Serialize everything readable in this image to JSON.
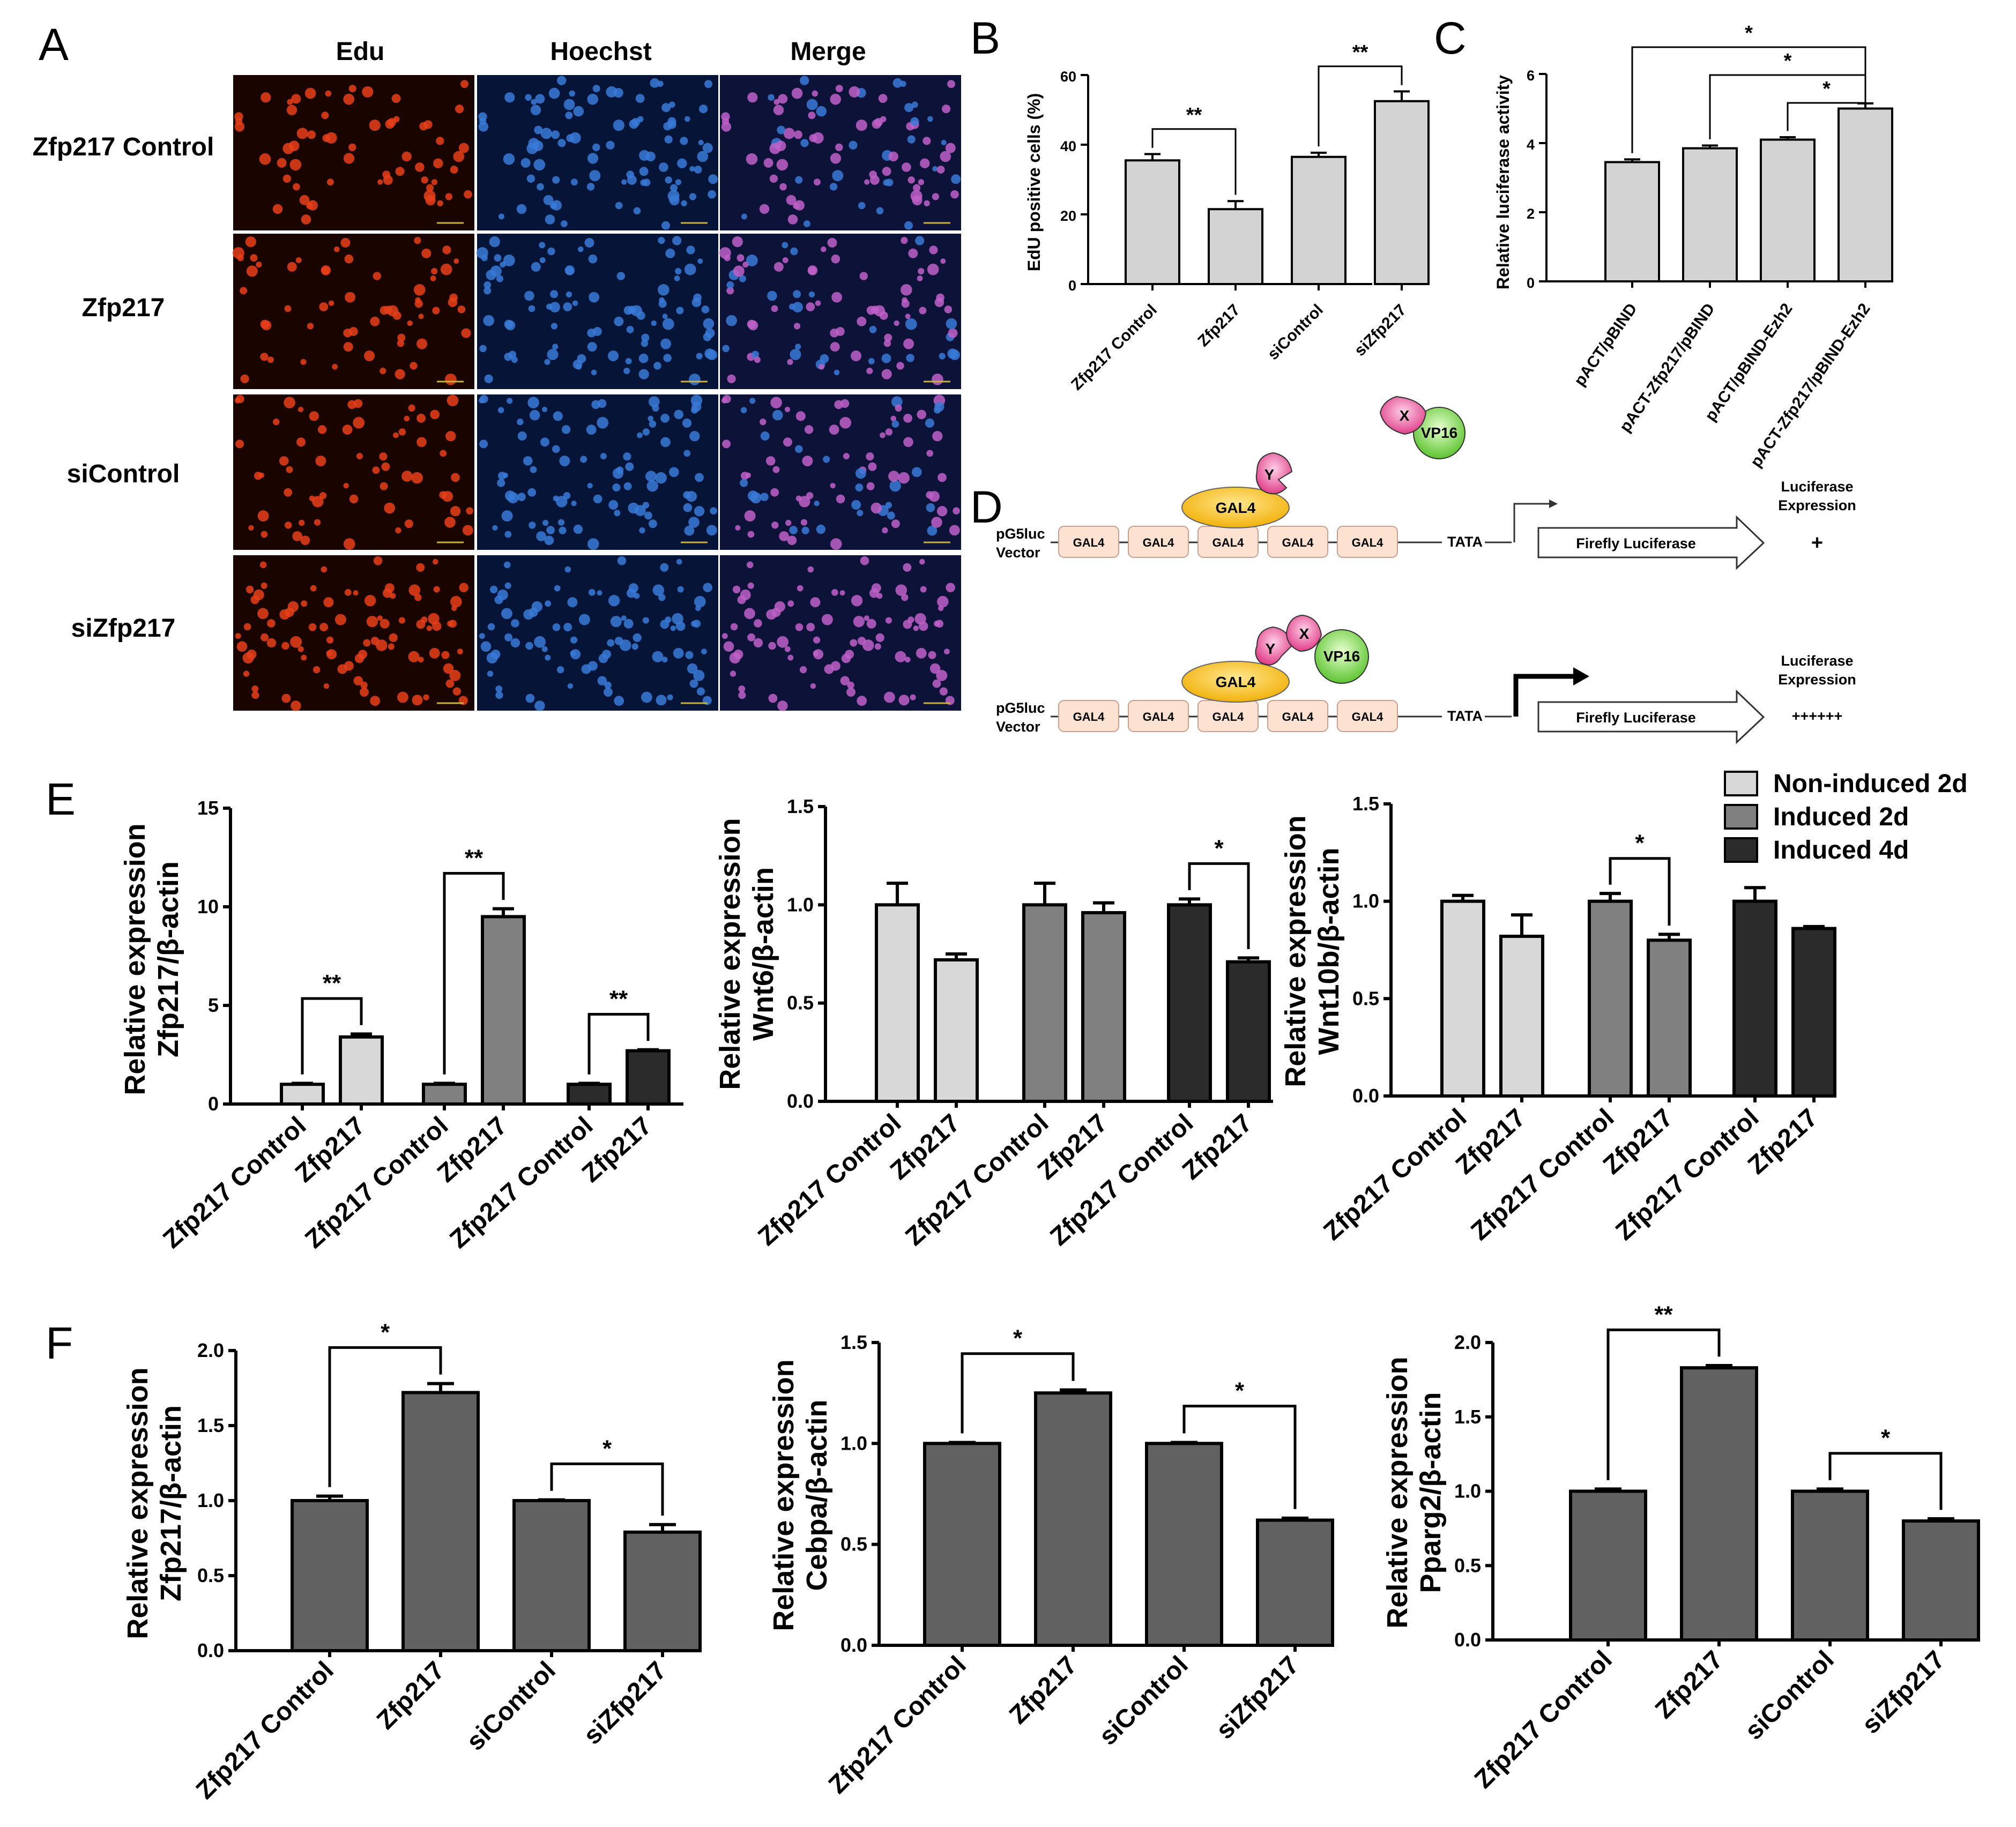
{
  "panel_labels": {
    "A": "A",
    "B": "B",
    "C": "C",
    "D": "D",
    "E": "E",
    "F": "F"
  },
  "panel_a": {
    "columns": [
      "Edu",
      "Hoechst",
      "Merge"
    ],
    "rows": [
      "Zfp217 Control",
      "Zfp217",
      "siControl",
      "siZfp217"
    ],
    "colors": {
      "edu": "#e8401a",
      "hoechst": "#3a7ad8",
      "merge": "#c060c8",
      "edu_bg": "#1a0400",
      "hoechst_bg": "#061438",
      "merge_bg": "#0d1238"
    }
  },
  "panel_d": {
    "vector_label": [
      "pG5luc",
      "Vector"
    ],
    "gal4_box": "GAL4",
    "gal4_protein": "GAL4",
    "tata": "TATA",
    "reporter": "Firefly Luciferase",
    "y_label": "Y",
    "x_label": "X",
    "vp16_label": "VP16",
    "expression_label": [
      "Luciferase",
      "Expression"
    ],
    "expr_top": "+",
    "expr_bottom": "++++++"
  },
  "legend": {
    "entries": [
      "Non-induced 2d",
      "Induced 2d",
      "Induced 4d"
    ],
    "colors": [
      "#d8d8d8",
      "#808080",
      "#2b2b2b"
    ]
  },
  "chart_data": [
    {
      "id": "B",
      "type": "bar",
      "categories": [
        "Zfp217 Control",
        "Zfp217",
        "siControl",
        "siZfp217"
      ],
      "values": [
        35.5,
        21.5,
        36.5,
        52.5
      ],
      "errors": [
        1.8,
        2.3,
        1.2,
        2.8
      ],
      "ylabel": "EdU positive cells (%)",
      "ylim": [
        0,
        60
      ],
      "yticks": [
        "0",
        "20",
        "40",
        "60"
      ],
      "ytick_values": [
        0,
        20,
        40,
        60
      ],
      "bar_colors": [
        "#d3d3d3",
        "#d3d3d3",
        "#d3d3d3",
        "#d3d3d3"
      ],
      "significance": [
        {
          "from": 0,
          "to": 1,
          "label": "**"
        },
        {
          "from": 2,
          "to": 3,
          "label": "**"
        }
      ]
    },
    {
      "id": "C",
      "type": "bar",
      "categories": [
        "pACT/pBIND",
        "pACT-Zfp217/pBIND",
        "pACT/pBIND-Ezh2",
        "pACT-Zfp217/pBIND-Ezh2"
      ],
      "values": [
        3.45,
        3.85,
        4.1,
        5.0
      ],
      "errors": [
        0.08,
        0.08,
        0.07,
        0.15
      ],
      "ylabel": "Relative luciferase activity",
      "ylim": [
        0,
        6
      ],
      "yticks": [
        "0",
        "2",
        "4",
        "6"
      ],
      "ytick_values": [
        0,
        2,
        4,
        6
      ],
      "bar_colors": [
        "#d3d3d3",
        "#d3d3d3",
        "#d3d3d3",
        "#d3d3d3"
      ],
      "significance": [
        {
          "from": 0,
          "to": 3,
          "label": "*"
        },
        {
          "from": 1,
          "to": 3,
          "label": "*"
        },
        {
          "from": 2,
          "to": 3,
          "label": "*"
        }
      ]
    },
    {
      "id": "E1",
      "type": "bar",
      "categories": [
        "Zfp217 Control",
        "Zfp217",
        "Zfp217 Control",
        "Zfp217",
        "Zfp217 Control",
        "Zfp217"
      ],
      "values": [
        1.0,
        3.4,
        1.0,
        9.5,
        1.0,
        2.7
      ],
      "errors": [
        0.05,
        0.15,
        0.05,
        0.4,
        0.05,
        0.05
      ],
      "ylabel": [
        "Relative expression",
        "Zfp217/β-actin"
      ],
      "ylim": [
        0,
        15
      ],
      "yticks": [
        "0",
        "5",
        "10",
        "15"
      ],
      "ytick_values": [
        0,
        5,
        10,
        15
      ],
      "bar_colors": [
        "#d8d8d8",
        "#d8d8d8",
        "#808080",
        "#808080",
        "#2b2b2b",
        "#2b2b2b"
      ],
      "significance": [
        {
          "from": 0,
          "to": 1,
          "label": "**"
        },
        {
          "from": 2,
          "to": 3,
          "label": "**"
        },
        {
          "from": 4,
          "to": 5,
          "label": "**"
        }
      ]
    },
    {
      "id": "E2",
      "type": "bar",
      "categories": [
        "Zfp217 Control",
        "Zfp217",
        "Zfp217 Control",
        "Zfp217",
        "Zfp217 Control",
        "Zfp217"
      ],
      "values": [
        1.0,
        0.72,
        1.0,
        0.96,
        1.0,
        0.71
      ],
      "errors": [
        0.11,
        0.03,
        0.11,
        0.05,
        0.03,
        0.02
      ],
      "ylabel": [
        "Relative expression",
        "Wnt6/β-actin"
      ],
      "ylim": [
        0,
        1.5
      ],
      "yticks": [
        "0.0",
        "0.5",
        "1.0",
        "1.5"
      ],
      "ytick_values": [
        0,
        0.5,
        1.0,
        1.5
      ],
      "bar_colors": [
        "#d8d8d8",
        "#d8d8d8",
        "#808080",
        "#808080",
        "#2b2b2b",
        "#2b2b2b"
      ],
      "significance": [
        {
          "from": 4,
          "to": 5,
          "label": "*"
        }
      ]
    },
    {
      "id": "E3",
      "type": "bar",
      "categories": [
        "Zfp217 Control",
        "Zfp217",
        "Zfp217 Control",
        "Zfp217",
        "Zfp217 Control",
        "Zfp217"
      ],
      "values": [
        1.0,
        0.82,
        1.0,
        0.8,
        1.0,
        0.86
      ],
      "errors": [
        0.03,
        0.11,
        0.04,
        0.03,
        0.07,
        0.01
      ],
      "ylabel": [
        "Relative expression",
        "Wnt10b/β-actin"
      ],
      "ylim": [
        0,
        1.5
      ],
      "yticks": [
        "0.0",
        "0.5",
        "1.0",
        "1.5"
      ],
      "ytick_values": [
        0,
        0.5,
        1.0,
        1.5
      ],
      "bar_colors": [
        "#d8d8d8",
        "#d8d8d8",
        "#808080",
        "#808080",
        "#2b2b2b",
        "#2b2b2b"
      ],
      "significance": [
        {
          "from": 2,
          "to": 3,
          "label": "*"
        }
      ]
    },
    {
      "id": "F1",
      "type": "bar",
      "categories": [
        "Zfp217 Control",
        "Zfp217",
        "siControl",
        "siZfp217"
      ],
      "values": [
        1.0,
        1.72,
        1.0,
        0.79
      ],
      "errors": [
        0.03,
        0.06,
        0.005,
        0.05
      ],
      "ylabel": [
        "Relative expression",
        "Zfp217/β-actin"
      ],
      "ylim": [
        0,
        2.0
      ],
      "yticks": [
        "0.0",
        "0.5",
        "1.0",
        "1.5",
        "2.0"
      ],
      "ytick_values": [
        0,
        0.5,
        1.0,
        1.5,
        2.0
      ],
      "bar_colors": [
        "#616161",
        "#616161",
        "#616161",
        "#616161"
      ],
      "significance": [
        {
          "from": 0,
          "to": 1,
          "label": "*"
        },
        {
          "from": 2,
          "to": 3,
          "label": "*"
        }
      ]
    },
    {
      "id": "F2",
      "type": "bar",
      "categories": [
        "Zfp217 Control",
        "Zfp217",
        "siControl",
        "siZfp217"
      ],
      "values": [
        1.0,
        1.25,
        1.0,
        0.62
      ],
      "errors": [
        0.005,
        0.015,
        0.005,
        0.01
      ],
      "ylabel": [
        "Relative expression",
        "Cebpa/β-actin"
      ],
      "ylim": [
        0,
        1.5
      ],
      "yticks": [
        "0.0",
        "0.5",
        "1.0",
        "1.5"
      ],
      "ytick_values": [
        0,
        0.5,
        1.0,
        1.5
      ],
      "bar_colors": [
        "#616161",
        "#616161",
        "#616161",
        "#616161"
      ],
      "significance": [
        {
          "from": 0,
          "to": 1,
          "label": "*"
        },
        {
          "from": 2,
          "to": 3,
          "label": "*"
        }
      ]
    },
    {
      "id": "F3",
      "type": "bar",
      "categories": [
        "Zfp217 Control",
        "Zfp217",
        "siControl",
        "siZfp217"
      ],
      "values": [
        1.0,
        1.83,
        1.0,
        0.8
      ],
      "errors": [
        0.015,
        0.015,
        0.015,
        0.015
      ],
      "ylabel": [
        "Relative expression",
        "Pparg2/β-actin"
      ],
      "ylim": [
        0,
        2.0
      ],
      "yticks": [
        "0.0",
        "0.5",
        "1.0",
        "1.5",
        "2.0"
      ],
      "ytick_values": [
        0,
        0.5,
        1.0,
        1.5,
        2.0
      ],
      "bar_colors": [
        "#616161",
        "#616161",
        "#616161",
        "#616161"
      ],
      "significance": [
        {
          "from": 0,
          "to": 1,
          "label": "**"
        },
        {
          "from": 2,
          "to": 3,
          "label": "*"
        }
      ]
    }
  ]
}
